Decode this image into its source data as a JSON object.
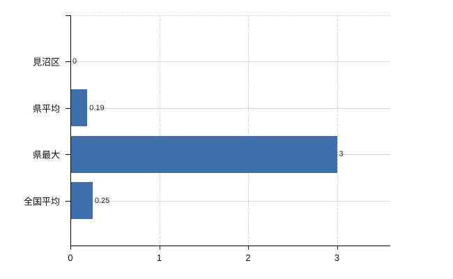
{
  "chart_data": {
    "type": "bar",
    "orientation": "horizontal",
    "title": "",
    "xlabel": "",
    "ylabel": "",
    "categories": [
      "見沼区",
      "県平均",
      "県最大",
      "全国平均"
    ],
    "values": [
      0,
      0.19,
      3,
      0.25
    ],
    "value_labels": [
      "0",
      "0.19",
      "3",
      "0.25"
    ],
    "x_ticks": [
      0,
      1,
      2,
      3
    ],
    "x_tick_labels": [
      "0",
      "1",
      "2",
      "3"
    ],
    "xlim": [
      0,
      3.6
    ],
    "grid": true,
    "legend_position": "none",
    "bar_color": "#3d6eae",
    "axis_color": "#000000",
    "vertical_gridline_color": "#d9d9d9",
    "horizontal_gridline_color": "#d2d8d2",
    "text_color": "#111111",
    "background_color": "#ffffff"
  }
}
